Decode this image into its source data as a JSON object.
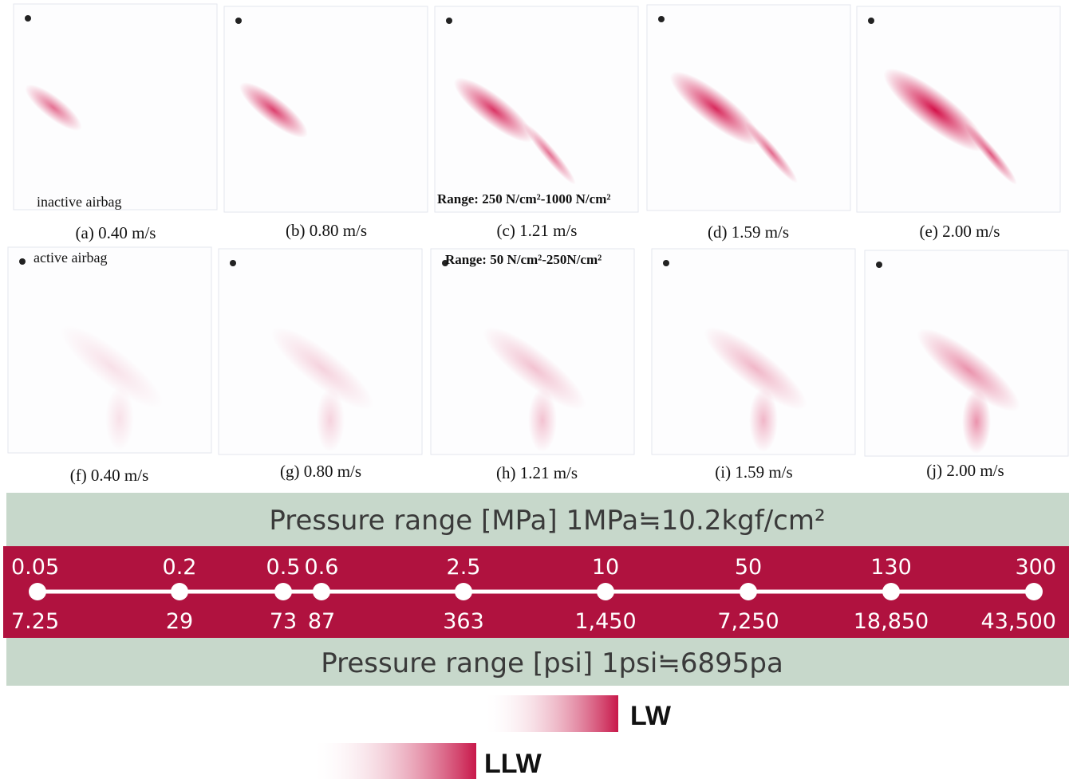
{
  "panels": [
    {
      "caption": "(a) 0.40 m/s"
    },
    {
      "caption": "(b) 0.80 m/s"
    },
    {
      "caption": "(c) 1.21 m/s"
    },
    {
      "caption": "(d) 1.59 m/s"
    },
    {
      "caption": "(e) 2.00 m/s"
    },
    {
      "caption": "(f) 0.40 m/s"
    },
    {
      "caption": "(g) 0.80 m/s"
    },
    {
      "caption": "(h) 1.21 m/s"
    },
    {
      "caption": "(i) 1.59 m/s"
    },
    {
      "caption": "(j) 2.00 m/s"
    }
  ],
  "annotations": {
    "inactive": "inactive airbag",
    "range_high": "Range: 250 N/cm²-1000 N/cm²",
    "active": "active airbag",
    "range_low": "Range: 50 N/cm²-250N/cm²"
  },
  "scale": {
    "mpa_title": "Pressure range [MPa]  1MPa≒10.2kgf/cm²",
    "psi_title": "Pressure range [psi]  1psi≒6895pa",
    "mpa": [
      "0.05",
      "0.2",
      "0.5",
      "0.6",
      "2.5",
      "10",
      "50",
      "130",
      "300"
    ],
    "psi": [
      "7.25",
      "29",
      "73",
      "87",
      "363",
      "1,450",
      "7,250",
      "18,850",
      "43,500"
    ]
  },
  "legend": [
    "LW",
    "LLW"
  ]
}
